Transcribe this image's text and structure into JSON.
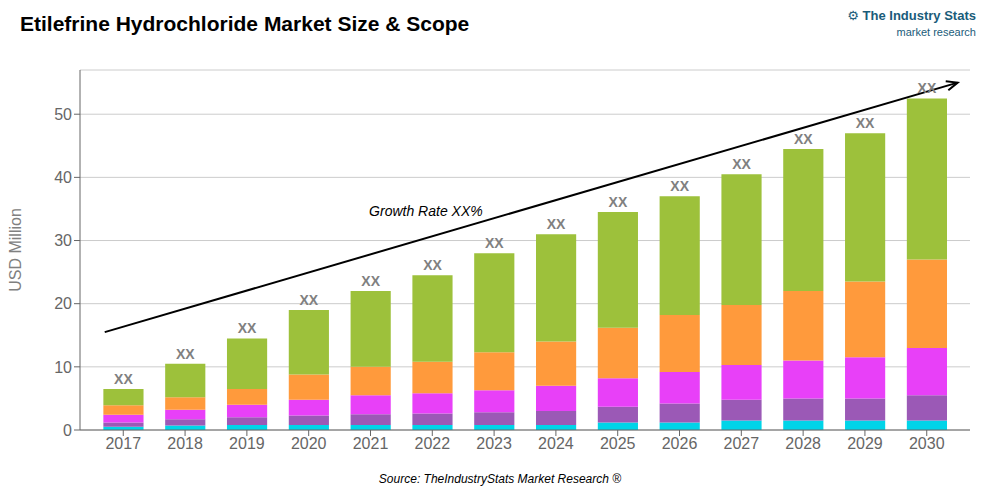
{
  "chart_data": {
    "type": "bar",
    "stacked": true,
    "title": "Etilefrine Hydrochloride Market Size & Scope",
    "ylabel": "USD Million",
    "x": [
      2017,
      2018,
      2019,
      2020,
      2021,
      2022,
      2023,
      2024,
      2025,
      2026,
      2027,
      2028,
      2029,
      2030
    ],
    "xlim": [
      2016.3,
      2030.7
    ],
    "xticks": [
      2017,
      2018,
      2019,
      2020,
      2021,
      2022,
      2023,
      2024,
      2025,
      2026,
      2027,
      2028,
      2029,
      2030
    ],
    "ylim": [
      0,
      57
    ],
    "yticks": [
      0,
      10,
      20,
      30,
      40,
      50
    ],
    "grid": true,
    "data_labels": true,
    "value_labels": [
      "XX",
      "XX",
      "XX",
      "XX",
      "XX",
      "XX",
      "XX",
      "XX",
      "XX",
      "XX",
      "XX",
      "XX",
      "XX",
      "XX"
    ],
    "series": [
      {
        "color": "#00d4e8",
        "values": [
          0.5,
          0.7,
          0.8,
          0.8,
          0.8,
          0.8,
          0.8,
          0.8,
          1.2,
          1.2,
          1.5,
          1.5,
          1.5,
          1.5
        ]
      },
      {
        "color": "#9b59b6",
        "values": [
          0.7,
          1.0,
          1.2,
          1.5,
          1.7,
          1.8,
          2.0,
          2.2,
          2.5,
          3.0,
          3.3,
          3.5,
          3.5,
          4.0
        ]
      },
      {
        "color": "#e840f8",
        "values": [
          1.2,
          1.5,
          2.0,
          2.5,
          3.0,
          3.2,
          3.5,
          4.0,
          4.5,
          5.0,
          5.5,
          6.0,
          6.5,
          7.5
        ]
      },
      {
        "color": "#ff9a3c",
        "values": [
          1.5,
          2.0,
          2.5,
          4.0,
          4.5,
          5.0,
          6.0,
          7.0,
          8.0,
          9.0,
          9.5,
          11.0,
          12.0,
          14.0
        ]
      },
      {
        "color": "#9dc13b",
        "values": [
          2.6,
          5.3,
          8.0,
          10.2,
          12.0,
          13.7,
          15.7,
          17.0,
          18.3,
          18.8,
          20.7,
          22.5,
          23.5,
          25.5
        ]
      }
    ],
    "annotations": [
      {
        "text": "Growth Rate XX%",
        "color": "black",
        "arrow": {
          "x": [
            2016.7,
            2030.5
          ],
          "y": [
            15.5,
            55.0
          ]
        }
      }
    ],
    "source": "Source: TheIndustryStats Market Research ®",
    "logo": [
      {
        "text": "⚙ The Industry Stats",
        "color": "#1a5c7a"
      },
      {
        "text": "market research",
        "color": "#1a5c7a"
      }
    ]
  }
}
